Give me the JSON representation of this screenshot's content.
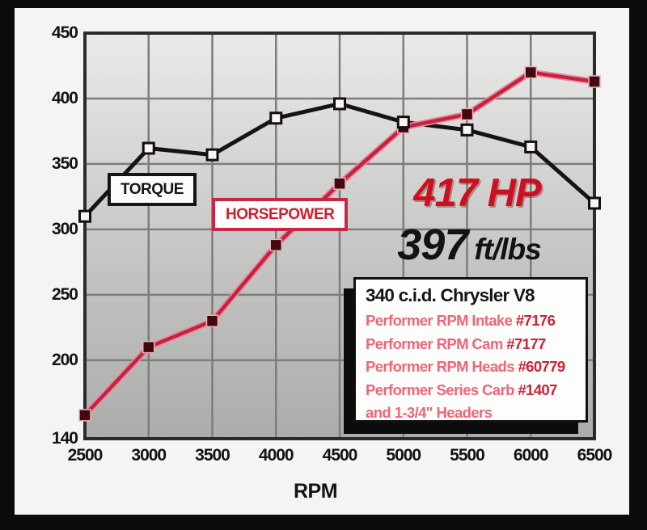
{
  "chart_data": {
    "type": "line",
    "title": "",
    "xlabel": "RPM",
    "ylabel": "",
    "x": [
      2500,
      3000,
      3500,
      4000,
      4500,
      5000,
      5500,
      6000,
      6500
    ],
    "xlim": [
      2500,
      6500
    ],
    "ylim": [
      140,
      450
    ],
    "yticks": [
      140,
      200,
      250,
      300,
      350,
      400,
      450
    ],
    "grid": true,
    "legend_position": "boxed-labels-on-plot",
    "series": [
      {
        "name": "TORQUE",
        "values": [
          310,
          362,
          357,
          385,
          396,
          382,
          376,
          363,
          320
        ],
        "line_color": "#141414",
        "marker": "square",
        "marker_fill": "#fff2f2",
        "marker_border": "#101010"
      },
      {
        "name": "HORSEPOWER",
        "values": [
          158,
          210,
          230,
          288,
          335,
          378,
          388,
          420,
          413
        ],
        "line_color": "#c22440",
        "line_halo": "#e989a0",
        "marker": "square",
        "marker_fill": "#42090f",
        "marker_border": "#efb0c0"
      }
    ]
  },
  "labels": {
    "torque_tag": "TORQUE",
    "horsepower_tag": "HORSEPOWER",
    "rpm_axis": "RPM"
  },
  "callouts": {
    "peak_hp": "417 HP",
    "peak_torque_value": "397",
    "peak_torque_unit": "ft/lbs"
  },
  "info_box": {
    "title": "340 c.i.d. Chrysler V8",
    "lines": [
      {
        "text": "Performer RPM Intake",
        "number": "#7176"
      },
      {
        "text": "Performer RPM Cam",
        "number": "#7177"
      },
      {
        "text": "Performer RPM Heads",
        "number": "#60779"
      },
      {
        "text": "Performer Series Carb",
        "number": "#1407"
      },
      {
        "text": "and 1-3/4\" Headers",
        "number": ""
      }
    ]
  },
  "colors": {
    "frame": "#0b0b0b",
    "panel": "#f4f4f2",
    "grid_line": "#7d7d7b",
    "plot_border": "#2b2b2b",
    "accent_red": "#cc101f",
    "info_text_red": "#ee6677",
    "info_number_red": "#cc2438"
  }
}
